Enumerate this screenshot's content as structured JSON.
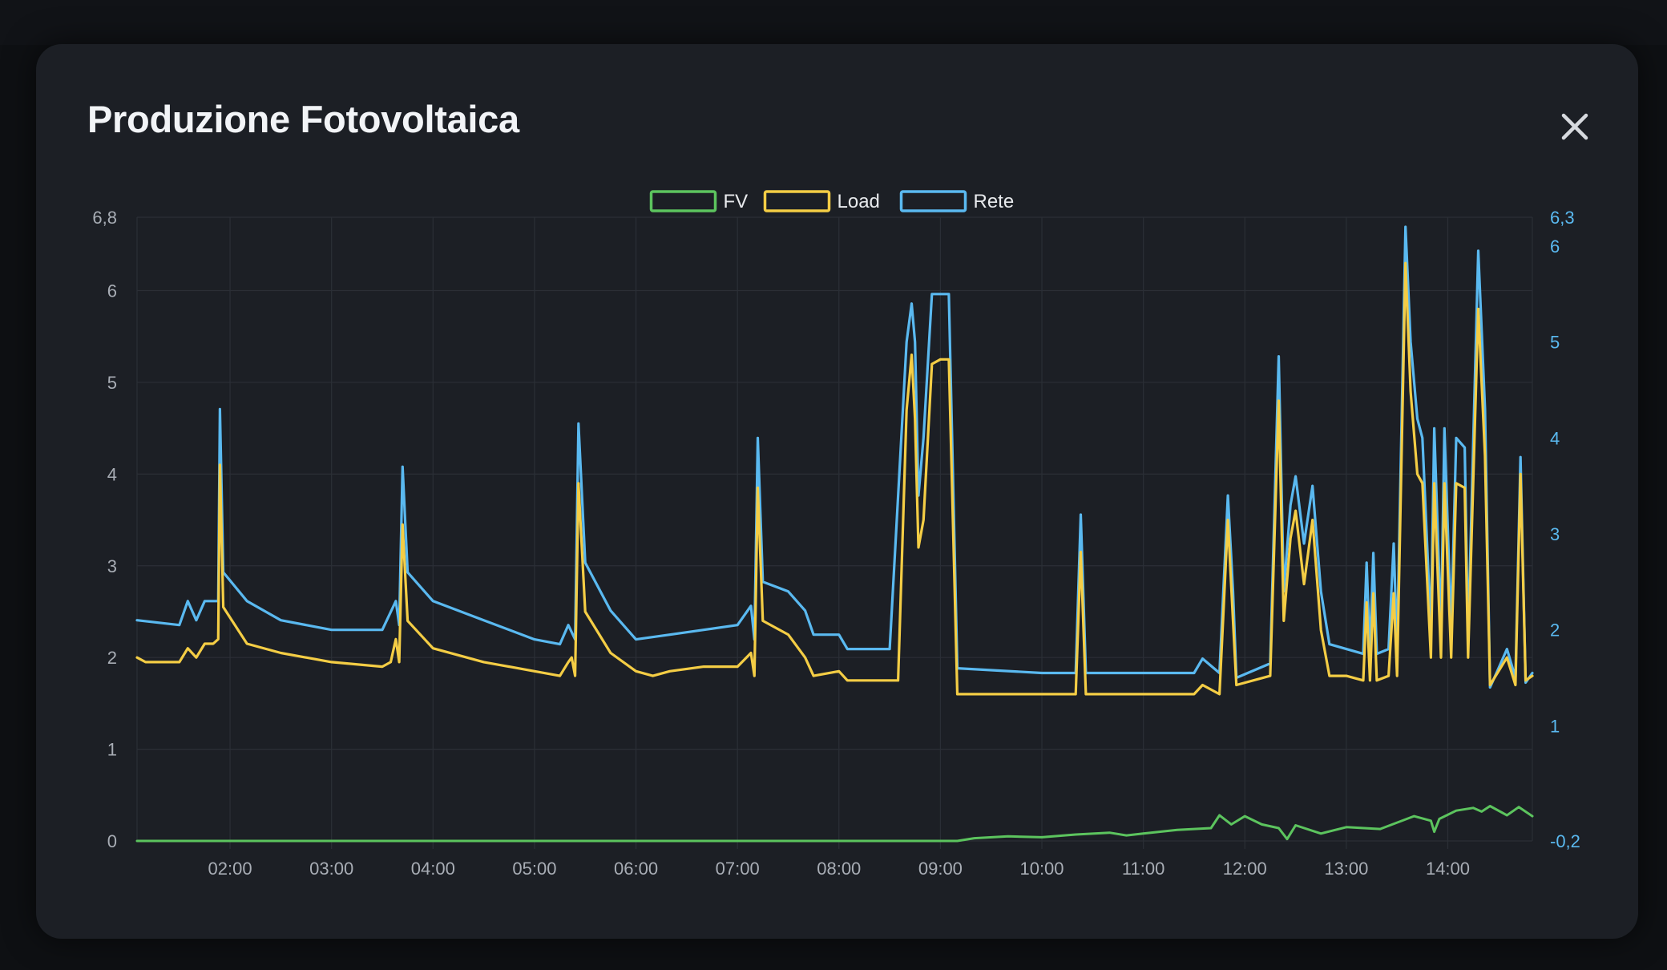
{
  "modal": {
    "title": "Produzione Fotovoltaica",
    "close_icon": "close-icon"
  },
  "chart_data": {
    "type": "line",
    "title": "Produzione Fotovoltaica",
    "legend": [
      "FV",
      "Load",
      "Rete"
    ],
    "legend_placement": "top-center",
    "grid": true,
    "x_range": [
      "01:05",
      "14:50"
    ],
    "x_ticks": [
      "02:00",
      "03:00",
      "04:00",
      "05:00",
      "06:00",
      "07:00",
      "08:00",
      "09:00",
      "10:00",
      "11:00",
      "12:00",
      "13:00",
      "14:00"
    ],
    "y_left": {
      "ylim": [
        0,
        6.8
      ],
      "ticks": [
        "0",
        "1",
        "2",
        "3",
        "4",
        "5",
        "6",
        "6,8"
      ]
    },
    "y_right": {
      "ylim": [
        -0.2,
        6.3
      ],
      "ticks": [
        "-0,2",
        "1",
        "2",
        "3",
        "4",
        "5",
        "6",
        "6,3"
      ]
    },
    "colors": {
      "FV": "#5cc45e",
      "Load": "#f4cd45",
      "Rete": "#5ab9f0",
      "grid": "#2b2f36"
    },
    "series": [
      {
        "name": "FV",
        "axis": "left",
        "points": [
          [
            "01:05",
            0
          ],
          [
            "09:10",
            0
          ],
          [
            "09:20",
            0.03
          ],
          [
            "09:40",
            0.05
          ],
          [
            "10:00",
            0.04
          ],
          [
            "10:20",
            0.07
          ],
          [
            "10:40",
            0.09
          ],
          [
            "10:50",
            0.06
          ],
          [
            "11:00",
            0.08
          ],
          [
            "11:20",
            0.12
          ],
          [
            "11:40",
            0.14
          ],
          [
            "11:45",
            0.28
          ],
          [
            "11:52",
            0.18
          ],
          [
            "12:00",
            0.27
          ],
          [
            "12:10",
            0.18
          ],
          [
            "12:20",
            0.14
          ],
          [
            "12:25",
            0.02
          ],
          [
            "12:30",
            0.17
          ],
          [
            "12:45",
            0.08
          ],
          [
            "13:00",
            0.15
          ],
          [
            "13:20",
            0.13
          ],
          [
            "13:40",
            0.27
          ],
          [
            "13:50",
            0.22
          ],
          [
            "13:52",
            0.1
          ],
          [
            "13:55",
            0.24
          ],
          [
            "14:05",
            0.33
          ],
          [
            "14:15",
            0.36
          ],
          [
            "14:20",
            0.32
          ],
          [
            "14:25",
            0.38
          ],
          [
            "14:35",
            0.28
          ],
          [
            "14:42",
            0.37
          ],
          [
            "14:50",
            0.27
          ]
        ]
      },
      {
        "name": "Load",
        "axis": "left",
        "points": [
          [
            "01:05",
            2.0
          ],
          [
            "01:10",
            1.95
          ],
          [
            "01:30",
            1.95
          ],
          [
            "01:35",
            2.1
          ],
          [
            "01:40",
            2.0
          ],
          [
            "01:45",
            2.15
          ],
          [
            "01:50",
            2.15
          ],
          [
            "01:53",
            2.2
          ],
          [
            "01:54",
            4.1
          ],
          [
            "01:56",
            2.55
          ],
          [
            "02:10",
            2.15
          ],
          [
            "02:30",
            2.05
          ],
          [
            "03:00",
            1.95
          ],
          [
            "03:30",
            1.9
          ],
          [
            "03:35",
            1.95
          ],
          [
            "03:38",
            2.2
          ],
          [
            "03:40",
            1.95
          ],
          [
            "03:42",
            3.45
          ],
          [
            "03:45",
            2.4
          ],
          [
            "04:00",
            2.1
          ],
          [
            "04:30",
            1.95
          ],
          [
            "05:00",
            1.85
          ],
          [
            "05:15",
            1.8
          ],
          [
            "05:20",
            1.95
          ],
          [
            "05:22",
            2.0
          ],
          [
            "05:24",
            1.8
          ],
          [
            "05:26",
            3.9
          ],
          [
            "05:30",
            2.5
          ],
          [
            "05:45",
            2.05
          ],
          [
            "06:00",
            1.85
          ],
          [
            "06:10",
            1.8
          ],
          [
            "06:20",
            1.85
          ],
          [
            "06:40",
            1.9
          ],
          [
            "07:00",
            1.9
          ],
          [
            "07:08",
            2.05
          ],
          [
            "07:10",
            1.8
          ],
          [
            "07:12",
            3.85
          ],
          [
            "07:15",
            2.4
          ],
          [
            "07:30",
            2.25
          ],
          [
            "07:40",
            2.0
          ],
          [
            "07:45",
            1.8
          ],
          [
            "08:00",
            1.85
          ],
          [
            "08:05",
            1.75
          ],
          [
            "08:30",
            1.75
          ],
          [
            "08:35",
            1.75
          ],
          [
            "08:40",
            4.7
          ],
          [
            "08:43",
            5.3
          ],
          [
            "08:45",
            4.6
          ],
          [
            "08:47",
            3.2
          ],
          [
            "08:50",
            3.5
          ],
          [
            "08:55",
            5.2
          ],
          [
            "09:00",
            5.25
          ],
          [
            "09:05",
            5.25
          ],
          [
            "09:10",
            1.6
          ],
          [
            "10:00",
            1.6
          ],
          [
            "10:20",
            1.6
          ],
          [
            "10:23",
            3.15
          ],
          [
            "10:26",
            1.6
          ],
          [
            "10:45",
            1.6
          ],
          [
            "11:00",
            1.6
          ],
          [
            "11:20",
            1.6
          ],
          [
            "11:30",
            1.6
          ],
          [
            "11:35",
            1.7
          ],
          [
            "11:45",
            1.6
          ],
          [
            "11:50",
            3.5
          ],
          [
            "11:53",
            2.4
          ],
          [
            "11:55",
            1.7
          ],
          [
            "12:15",
            1.8
          ],
          [
            "12:20",
            4.8
          ],
          [
            "12:23",
            2.4
          ],
          [
            "12:27",
            3.3
          ],
          [
            "12:30",
            3.6
          ],
          [
            "12:35",
            2.8
          ],
          [
            "12:40",
            3.5
          ],
          [
            "12:45",
            2.3
          ],
          [
            "12:50",
            1.8
          ],
          [
            "13:00",
            1.8
          ],
          [
            "13:10",
            1.75
          ],
          [
            "13:12",
            2.6
          ],
          [
            "13:14",
            1.75
          ],
          [
            "13:16",
            2.7
          ],
          [
            "13:18",
            1.75
          ],
          [
            "13:25",
            1.8
          ],
          [
            "13:28",
            2.7
          ],
          [
            "13:30",
            1.8
          ],
          [
            "13:35",
            6.3
          ],
          [
            "13:38",
            4.9
          ],
          [
            "13:42",
            4.0
          ],
          [
            "13:45",
            3.9
          ],
          [
            "13:50",
            2.0
          ],
          [
            "13:52",
            3.9
          ],
          [
            "13:56",
            2.0
          ],
          [
            "13:58",
            3.9
          ],
          [
            "14:02",
            2.0
          ],
          [
            "14:05",
            3.9
          ],
          [
            "14:10",
            3.85
          ],
          [
            "14:12",
            2.0
          ],
          [
            "14:18",
            5.8
          ],
          [
            "14:22",
            4.2
          ],
          [
            "14:25",
            1.7
          ],
          [
            "14:30",
            1.85
          ],
          [
            "14:35",
            2.0
          ],
          [
            "14:40",
            1.7
          ],
          [
            "14:43",
            4.0
          ],
          [
            "14:46",
            1.75
          ],
          [
            "14:50",
            1.8
          ]
        ]
      },
      {
        "name": "Rete",
        "axis": "right",
        "points": [
          [
            "01:05",
            2.1
          ],
          [
            "01:30",
            2.05
          ],
          [
            "01:35",
            2.3
          ],
          [
            "01:40",
            2.1
          ],
          [
            "01:45",
            2.3
          ],
          [
            "01:53",
            2.3
          ],
          [
            "01:54",
            4.3
          ],
          [
            "01:56",
            2.6
          ],
          [
            "02:10",
            2.3
          ],
          [
            "02:30",
            2.1
          ],
          [
            "03:00",
            2.0
          ],
          [
            "03:30",
            2.0
          ],
          [
            "03:38",
            2.3
          ],
          [
            "03:40",
            2.05
          ],
          [
            "03:42",
            3.7
          ],
          [
            "03:45",
            2.6
          ],
          [
            "04:00",
            2.3
          ],
          [
            "04:30",
            2.1
          ],
          [
            "05:00",
            1.9
          ],
          [
            "05:15",
            1.85
          ],
          [
            "05:20",
            2.05
          ],
          [
            "05:24",
            1.9
          ],
          [
            "05:26",
            4.15
          ],
          [
            "05:30",
            2.7
          ],
          [
            "05:45",
            2.2
          ],
          [
            "06:00",
            1.9
          ],
          [
            "06:20",
            1.95
          ],
          [
            "06:40",
            2.0
          ],
          [
            "07:00",
            2.05
          ],
          [
            "07:08",
            2.25
          ],
          [
            "07:10",
            1.9
          ],
          [
            "07:12",
            4.0
          ],
          [
            "07:15",
            2.5
          ],
          [
            "07:30",
            2.4
          ],
          [
            "07:40",
            2.2
          ],
          [
            "07:45",
            1.95
          ],
          [
            "08:00",
            1.95
          ],
          [
            "08:05",
            1.8
          ],
          [
            "08:30",
            1.8
          ],
          [
            "08:40",
            5.0
          ],
          [
            "08:43",
            5.4
          ],
          [
            "08:45",
            5.0
          ],
          [
            "08:47",
            3.4
          ],
          [
            "08:50",
            4.0
          ],
          [
            "08:55",
            5.5
          ],
          [
            "09:05",
            5.5
          ],
          [
            "09:10",
            1.6
          ],
          [
            "10:00",
            1.55
          ],
          [
            "10:20",
            1.55
          ],
          [
            "10:23",
            3.2
          ],
          [
            "10:26",
            1.55
          ],
          [
            "10:45",
            1.55
          ],
          [
            "11:00",
            1.55
          ],
          [
            "11:30",
            1.55
          ],
          [
            "11:35",
            1.7
          ],
          [
            "11:45",
            1.55
          ],
          [
            "11:50",
            3.4
          ],
          [
            "11:53",
            2.4
          ],
          [
            "11:55",
            1.5
          ],
          [
            "12:15",
            1.65
          ],
          [
            "12:20",
            4.85
          ],
          [
            "12:23",
            2.4
          ],
          [
            "12:27",
            3.3
          ],
          [
            "12:30",
            3.6
          ],
          [
            "12:35",
            2.9
          ],
          [
            "12:40",
            3.5
          ],
          [
            "12:45",
            2.4
          ],
          [
            "12:50",
            1.85
          ],
          [
            "13:00",
            1.8
          ],
          [
            "13:10",
            1.75
          ],
          [
            "13:12",
            2.7
          ],
          [
            "13:14",
            1.75
          ],
          [
            "13:16",
            2.8
          ],
          [
            "13:18",
            1.75
          ],
          [
            "13:25",
            1.8
          ],
          [
            "13:28",
            2.9
          ],
          [
            "13:30",
            1.8
          ],
          [
            "13:35",
            6.2
          ],
          [
            "13:38",
            5.0
          ],
          [
            "13:42",
            4.2
          ],
          [
            "13:45",
            4.0
          ],
          [
            "13:50",
            2.0
          ],
          [
            "13:52",
            4.1
          ],
          [
            "13:56",
            2.0
          ],
          [
            "13:58",
            4.1
          ],
          [
            "14:02",
            2.0
          ],
          [
            "14:05",
            4.0
          ],
          [
            "14:10",
            3.9
          ],
          [
            "14:12",
            1.9
          ],
          [
            "14:18",
            5.95
          ],
          [
            "14:22",
            4.3
          ],
          [
            "14:25",
            1.4
          ],
          [
            "14:30",
            1.6
          ],
          [
            "14:35",
            1.8
          ],
          [
            "14:40",
            1.5
          ],
          [
            "14:43",
            3.8
          ],
          [
            "14:46",
            1.45
          ],
          [
            "14:50",
            1.55
          ]
        ]
      }
    ]
  }
}
